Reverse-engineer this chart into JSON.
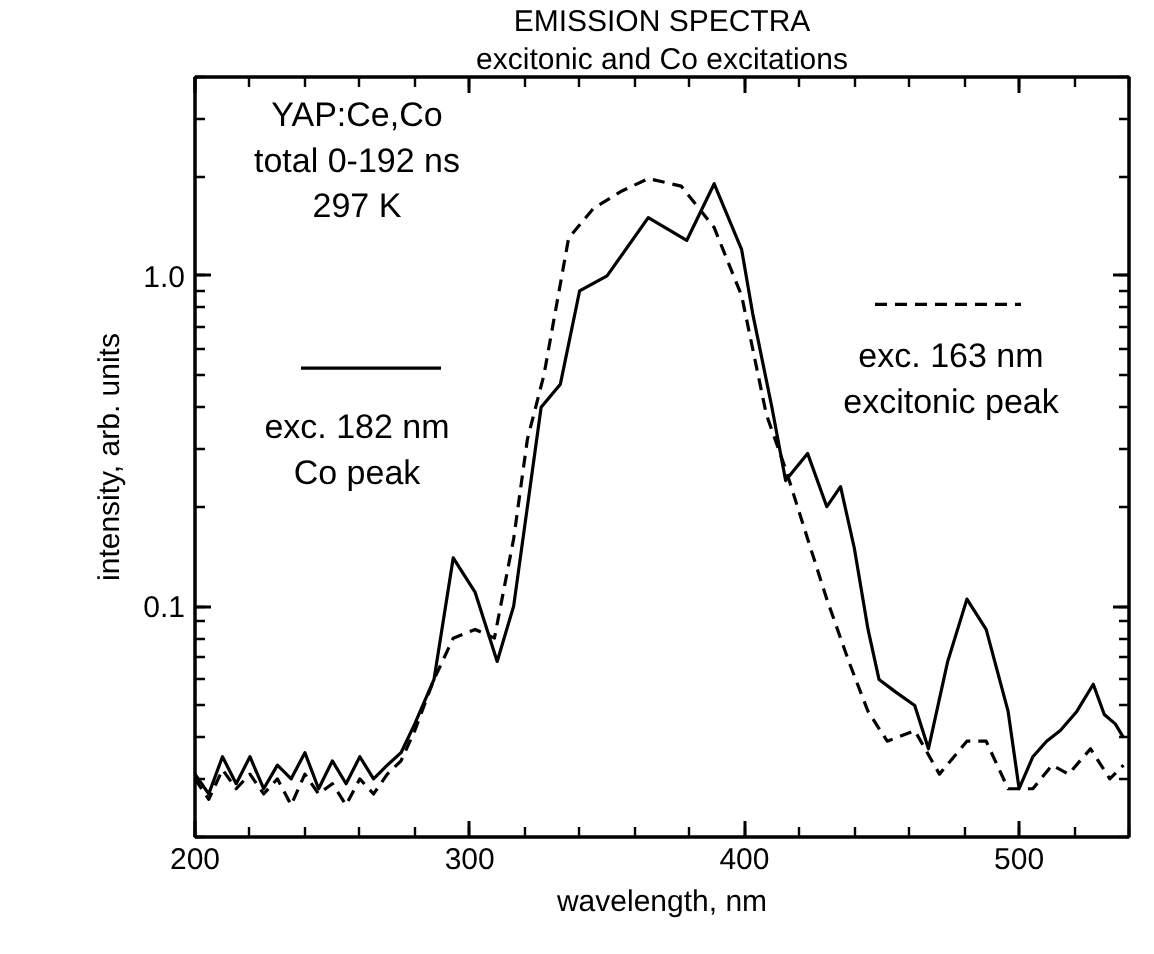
{
  "chart_data": {
    "type": "line",
    "title": "EMISSION SPECTRA",
    "subtitle": "excitonic and Co excitations",
    "xlabel": "wavelength, nm",
    "ylabel": "intensity, arb. units",
    "log": "y",
    "grid": false,
    "legend": "top",
    "xlim": [
      200,
      540
    ],
    "xticks": [
      200,
      300,
      400,
      500
    ],
    "ylim": [
      0.02,
      4
    ],
    "yticks": [
      0.1,
      {
        "value": 1,
        "label": "1.0"
      }
    ],
    "annotations": [
      "YAP:Ce,Co\ntotal 0-192 ns\n297 K"
    ],
    "series": [
      {
        "name": "exc. 182 nm\nCo peak",
        "color": "#000000",
        "line_style": "solid",
        "x": [
          200,
          205,
          210,
          215,
          220,
          225,
          230,
          235,
          240,
          245,
          250,
          255,
          260,
          265,
          270,
          275,
          280,
          287,
          294,
          302,
          310,
          316,
          321,
          326,
          333,
          340,
          350,
          365,
          379,
          389,
          399,
          403,
          410,
          415,
          423,
          430,
          435,
          440,
          445,
          449,
          455,
          462,
          467,
          474,
          481,
          488,
          496,
          500,
          505,
          510,
          515,
          521,
          527,
          531,
          535,
          538
        ],
        "values": [
          0.031,
          0.027,
          0.035,
          0.029,
          0.035,
          0.028,
          0.033,
          0.03,
          0.036,
          0.028,
          0.034,
          0.029,
          0.035,
          0.03,
          0.033,
          0.036,
          0.044,
          0.06,
          0.14,
          0.11,
          0.068,
          0.1,
          0.2,
          0.4,
          0.47,
          0.9,
          1.0,
          1.5,
          1.28,
          1.9,
          1.2,
          0.77,
          0.4,
          0.24,
          0.29,
          0.2,
          0.23,
          0.15,
          0.085,
          0.06,
          0.055,
          0.05,
          0.037,
          0.068,
          0.105,
          0.085,
          0.048,
          0.028,
          0.035,
          0.039,
          0.042,
          0.048,
          0.058,
          0.047,
          0.044,
          0.04
        ]
      },
      {
        "name": "exc. 163 nm\nexcitonic peak",
        "color": "#000000",
        "line_style": "dashed",
        "x": [
          200,
          205,
          210,
          215,
          220,
          225,
          230,
          235,
          240,
          245,
          250,
          255,
          260,
          265,
          270,
          275,
          280,
          287,
          294,
          302,
          309,
          316,
          321,
          327,
          336,
          345,
          355,
          365,
          377,
          389,
          399,
          408,
          415,
          423,
          430,
          438,
          445,
          452,
          462,
          471,
          481,
          488,
          496,
          505,
          512,
          518,
          526,
          533,
          538
        ],
        "values": [
          0.03,
          0.026,
          0.032,
          0.028,
          0.031,
          0.027,
          0.03,
          0.025,
          0.031,
          0.027,
          0.029,
          0.025,
          0.03,
          0.027,
          0.031,
          0.034,
          0.042,
          0.06,
          0.08,
          0.085,
          0.08,
          0.16,
          0.32,
          0.5,
          1.3,
          1.6,
          1.8,
          1.97,
          1.87,
          1.4,
          0.87,
          0.38,
          0.26,
          0.16,
          0.105,
          0.068,
          0.048,
          0.039,
          0.042,
          0.031,
          0.039,
          0.039,
          0.028,
          0.028,
          0.033,
          0.031,
          0.037,
          0.03,
          0.033
        ]
      }
    ]
  }
}
